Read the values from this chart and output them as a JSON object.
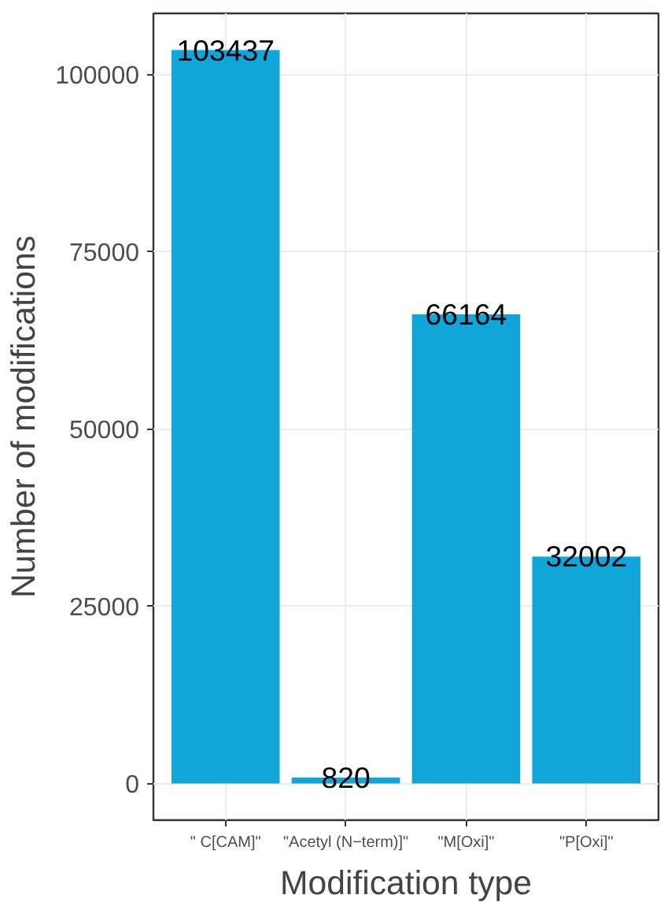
{
  "chart_data": {
    "type": "bar",
    "xlabel": "Modification type",
    "ylabel": "Number of modifications",
    "categories": [
      "\" C[CAM]\"",
      "\"Acetyl (N−term)]\"",
      "\"M[Oxi]\"",
      "\"P[Oxi]\""
    ],
    "values": [
      103437,
      820,
      66164,
      32002
    ],
    "color": "#12a5da",
    "ylim": [
      -5172,
      108609
    ],
    "yticks": [
      0,
      25000,
      50000,
      75000,
      100000
    ],
    "grid": true,
    "data_labels": true
  }
}
